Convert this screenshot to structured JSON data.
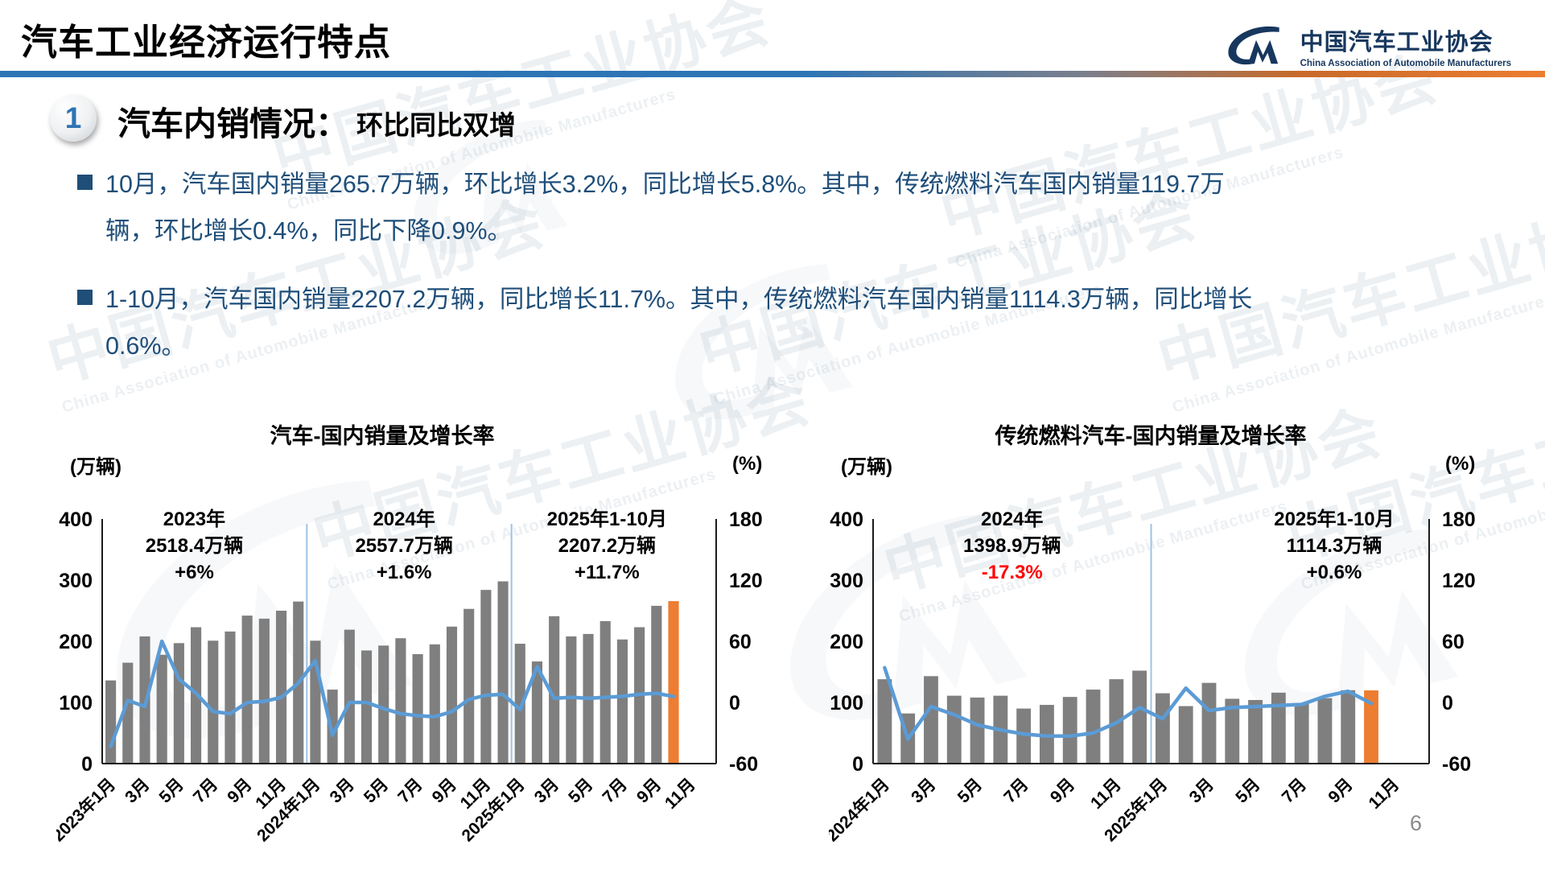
{
  "header": {
    "title": "汽车工业经济运行特点",
    "logo": {
      "org_cn": "中国汽车工业协会",
      "org_en": "China Association of Automobile Manufacturers"
    }
  },
  "section": {
    "number": "1",
    "title": "汽车内销情况：",
    "subtitle": "环比同比双增"
  },
  "bullets": [
    "10月，汽车国内销量265.7万辆，环比增长3.2%，同比增长5.8%。其中，传统燃料汽车国内销量119.7万辆，环比增长0.4%，同比下降0.9%。",
    "1-10月，汽车国内销量2207.2万辆，同比增长11.7%。其中，传统燃料汽车国内销量1114.3万辆，同比增长0.6%。"
  ],
  "watermark": {
    "text": "中国汽车工业协会",
    "subtext": "China Association of Automobile Manufacturers"
  },
  "page_number": "6",
  "colors": {
    "bar": "#7F7F7F",
    "bar_highlight": "#ED7D31",
    "line": "#5B9BD5",
    "separator": "#9DC3E6",
    "axis": "#1a1a1a",
    "accent_blue": "#2E75B6",
    "accent_orange": "#ED7D31",
    "text_dark_blue": "#1F4E79",
    "logo_blue": "#17375E",
    "negative_red": "#FF0000"
  },
  "chart_data": [
    {
      "type": "bar+line",
      "title": "汽车-国内销量及增长率",
      "left_axis_label": "(万辆)",
      "right_axis_label": "(%)",
      "left_ylim": [
        0,
        400
      ],
      "right_ylim": [
        -60,
        180
      ],
      "left_axis_ticks": [
        400,
        300,
        200,
        100,
        0
      ],
      "right_axis_ticks": [
        180,
        120,
        60,
        0,
        -60
      ],
      "total_slots": 36,
      "separators_after_index": [
        11,
        23
      ],
      "x_tick_labels": [
        "2023年1月",
        "3月",
        "5月",
        "7月",
        "9月",
        "11月",
        "2024年1月",
        "3月",
        "5月",
        "7月",
        "9月",
        "11月",
        "2025年1月",
        "3月",
        "5月",
        "7月",
        "9月",
        "11月"
      ],
      "categories": [
        "2023年1月",
        "2023年2月",
        "2023年3月",
        "2023年4月",
        "2023年5月",
        "2023年6月",
        "2023年7月",
        "2023年8月",
        "2023年9月",
        "2023年10月",
        "2023年11月",
        "2023年12月",
        "2024年1月",
        "2024年2月",
        "2024年3月",
        "2024年4月",
        "2024年5月",
        "2024年6月",
        "2024年7月",
        "2024年8月",
        "2024年9月",
        "2024年10月",
        "2024年11月",
        "2024年12月",
        "2025年1月",
        "2025年2月",
        "2025年3月",
        "2025年4月",
        "2025年5月",
        "2025年6月",
        "2025年7月",
        "2025年8月",
        "2025年9月",
        "2025年10月"
      ],
      "series": [
        {
          "name": "国内销量",
          "type": "bar",
          "axis": "left",
          "unit": "万辆",
          "values": [
            136,
            165,
            208,
            178,
            197,
            223,
            201,
            216,
            242,
            237,
            250,
            265,
            201,
            121,
            219,
            185,
            193,
            205,
            179,
            195,
            224,
            253,
            284,
            298,
            196,
            167,
            241,
            208,
            212,
            233,
            203,
            223,
            258,
            265.7
          ]
        },
        {
          "name": "增长率",
          "type": "line",
          "axis": "right",
          "unit": "%",
          "values": [
            -43,
            2,
            -4,
            60,
            23,
            9,
            -9,
            -11,
            0,
            1,
            5,
            19,
            41,
            -32,
            0,
            0,
            -6,
            -11,
            -13,
            -14,
            -9,
            3,
            7,
            8,
            -7,
            35,
            4,
            5,
            4,
            5,
            6,
            8,
            9,
            5.8
          ]
        }
      ],
      "highlight_last_bar": true,
      "annotations": [
        {
          "lines": [
            "2023年",
            "2518.4万辆",
            "+6%"
          ],
          "value_color": "#000000",
          "center_slot": 5.4
        },
        {
          "lines": [
            "2024年",
            "2557.7万辆",
            "+1.6%"
          ],
          "value_color": "#000000",
          "center_slot": 17.7
        },
        {
          "lines": [
            "2025年1-10月",
            "2207.2万辆",
            "+11.7%"
          ],
          "value_color": "#000000",
          "center_slot": 29.6
        }
      ]
    },
    {
      "type": "bar+line",
      "title": "传统燃料汽车-国内销量及增长率",
      "left_axis_label": "(万辆)",
      "right_axis_label": "(%)",
      "left_ylim": [
        0,
        400
      ],
      "right_ylim": [
        -60,
        180
      ],
      "left_axis_ticks": [
        400,
        300,
        200,
        100,
        0
      ],
      "right_axis_ticks": [
        180,
        120,
        60,
        0,
        -60
      ],
      "total_slots": 24,
      "separators_after_index": [
        11
      ],
      "x_tick_labels": [
        "2024年1月",
        "3月",
        "5月",
        "7月",
        "9月",
        "11月",
        "2025年1月",
        "3月",
        "5月",
        "7月",
        "9月",
        "11月"
      ],
      "categories": [
        "2024年1月",
        "2024年2月",
        "2024年3月",
        "2024年4月",
        "2024年5月",
        "2024年6月",
        "2024年7月",
        "2024年8月",
        "2024年9月",
        "2024年10月",
        "2024年11月",
        "2024年12月",
        "2025年1月",
        "2025年2月",
        "2025年3月",
        "2025年4月",
        "2025年5月",
        "2025年6月",
        "2025年7月",
        "2025年8月",
        "2025年9月",
        "2025年10月"
      ],
      "series": [
        {
          "name": "国内销量",
          "type": "bar",
          "axis": "left",
          "unit": "万辆",
          "values": [
            138,
            82,
            143,
            111,
            108,
            111,
            90,
            96,
            109,
            121,
            138,
            152,
            115,
            94,
            132,
            106,
            104,
            116,
            99,
            107,
            120,
            119.7
          ]
        },
        {
          "name": "增长率",
          "type": "line",
          "axis": "right",
          "unit": "%",
          "values": [
            34,
            -36,
            -4,
            -12,
            -22,
            -27,
            -31,
            -33,
            -33,
            -30,
            -20,
            -5,
            -16,
            14,
            -8,
            -5,
            -4,
            -3,
            -2,
            6,
            11,
            -0.9
          ]
        }
      ],
      "highlight_last_bar": true,
      "annotations": [
        {
          "lines": [
            "2024年",
            "1398.9万辆",
            "-17.3%"
          ],
          "value_color": "#FF0000",
          "center_slot": 6.0
        },
        {
          "lines": [
            "2025年1-10月",
            "1114.3万辆",
            "+0.6%"
          ],
          "value_color": "#000000",
          "center_slot": 19.9
        }
      ]
    }
  ]
}
